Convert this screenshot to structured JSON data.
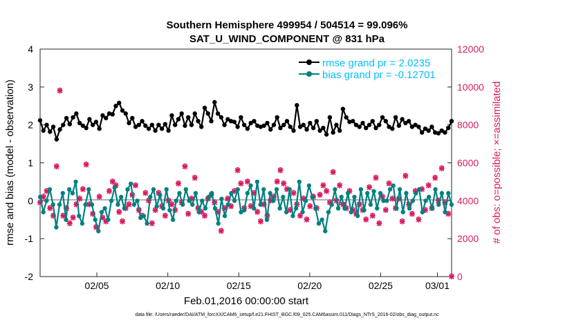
{
  "title_line1": "Southern Hemisphere 499954 / 504514 = 99.096%",
  "title_line2": "SAT_U_WIND_COMPONENT @ 831 hPa",
  "footer": "data file: /Users/raeder/DAI/ATM_forcXX/CAM6_setup/f.e21.FHIST_BGC.f09_025.CAM6assim.011/Diags_NTrS_2016-02/obs_diag_output.nc",
  "colors": {
    "rmse": "#000000",
    "bias": "#008080",
    "obs": "#d81b60",
    "legend_text": "#00bfff",
    "zero_line": "#b3b3b3"
  },
  "chart_data": {
    "type": "line",
    "xlabel": "Feb.01,2016 00:00:00 start",
    "ylabel_left": "rmse and bias (model - observation)",
    "ylabel_right": "# of obs: o=possible; ×=assimilated",
    "x_range_days": [
      0,
      29
    ],
    "ylim_left": [
      -2,
      4
    ],
    "ylim_right": [
      0,
      12000
    ],
    "left_ticks": [
      "-2",
      "-1",
      "0",
      "1",
      "2",
      "3",
      "4"
    ],
    "right_ticks": [
      "0",
      "2000",
      "4000",
      "6000",
      "8000",
      "10000",
      "12000"
    ],
    "x_ticks": [
      {
        "day": 4,
        "label": "02/05"
      },
      {
        "day": 9,
        "label": "02/10"
      },
      {
        "day": 14,
        "label": "02/15"
      },
      {
        "day": 19,
        "label": "02/20"
      },
      {
        "day": 24,
        "label": "02/25"
      },
      {
        "day": 28,
        "label": "03/01"
      }
    ],
    "legend": [
      "rmse grand pr = 2.0235",
      "bias grand pr = -0.12701"
    ],
    "series": [
      {
        "name": "rmse",
        "values": [
          2.12,
          1.85,
          2.0,
          1.82,
          1.95,
          1.62,
          1.88,
          2.0,
          2.18,
          2.02,
          2.2,
          2.3,
          2.05,
          1.98,
          1.92,
          2.15,
          2.0,
          2.08,
          1.9,
          2.25,
          2.18,
          2.3,
          2.28,
          2.5,
          2.58,
          2.38,
          2.3,
          2.05,
          2.18,
          1.95,
          2.0,
          2.1,
          1.98,
          1.9,
          2.0,
          1.85,
          2.0,
          1.9,
          2.02,
          1.85,
          2.25,
          2.0,
          2.15,
          2.3,
          1.98,
          2.2,
          2.0,
          2.3,
          2.1,
          1.95,
          2.45,
          2.3,
          2.1,
          2.6,
          2.3,
          2.2,
          2.0,
          2.15,
          2.1,
          2.08,
          1.95,
          2.2,
          2.0,
          1.9,
          2.05,
          2.1,
          1.98,
          1.95,
          1.98,
          2.05,
          1.88,
          2.0,
          2.2,
          1.92,
          2.0,
          2.1,
          1.95,
          1.85,
          2.52,
          1.95,
          2.0,
          1.88,
          2.05,
          1.92,
          2.1,
          1.85,
          1.92,
          1.75,
          2.2,
          1.8,
          2.0,
          1.85,
          2.42,
          2.2,
          2.08,
          2.1,
          2.0,
          1.95,
          2.05,
          1.92,
          2.0,
          2.1,
          1.92,
          2.0,
          2.2,
          2.1,
          1.95,
          1.9,
          2.2,
          1.98,
          2.15,
          2.05,
          2.1,
          1.95,
          2.0,
          1.95,
          1.8,
          1.9,
          1.85,
          1.95,
          1.8,
          1.78,
          1.85,
          1.8,
          1.92,
          2.1
        ]
      },
      {
        "name": "bias",
        "values": [
          0.1,
          -0.3,
          0.0,
          0.3,
          -0.1,
          -0.7,
          -0.1,
          0.2,
          -0.5,
          0.3,
          0.2,
          0.5,
          -0.4,
          -0.6,
          -0.1,
          0.3,
          -0.1,
          -0.5,
          -0.8,
          -0.3,
          -0.2,
          -0.5,
          0.0,
          0.35,
          -0.1,
          0.1,
          -0.2,
          0.3,
          0.45,
          -0.1,
          0.0,
          -0.45,
          -0.4,
          -0.6,
          0.1,
          0.3,
          -0.15,
          0.15,
          -0.2,
          0.3,
          -0.25,
          -0.5,
          0.0,
          0.2,
          -0.1,
          0.3,
          0.0,
          -0.1,
          0.2,
          -0.3,
          0.0,
          -0.2,
          0.1,
          0.2,
          -0.2,
          -0.6,
          0.05,
          -0.4,
          -0.1,
          0.2,
          0.0,
          0.3,
          -0.3,
          -0.25,
          0.2,
          0.4,
          -0.2,
          0.5,
          -0.1,
          0.3,
          -0.5,
          0.2,
          0.0,
          0.3,
          -0.2,
          0.1,
          -0.3,
          0.3,
          -0.4,
          -0.2,
          0.5,
          -0.3,
          0.0,
          0.4,
          0.1,
          -0.2,
          -0.6,
          -0.5,
          -0.8,
          -0.3,
          -0.1,
          0.3,
          -0.2,
          0.1,
          -0.2,
          0.2,
          -0.3,
          0.1,
          -0.4,
          0.3,
          -0.25,
          0.2,
          -0.1,
          0.25,
          -0.2,
          0.2,
          0.0,
          0.0,
          0.3,
          0.4,
          -0.2,
          0.3,
          -0.3,
          0.2,
          -0.2,
          0.0,
          0.2,
          0.3,
          -0.3,
          0.0,
          0.1,
          -0.2,
          0.3,
          -0.1,
          0.2,
          -0.3,
          0.2,
          -0.1
        ]
      },
      {
        "name": "obs_assimilated",
        "values": [
          3900,
          4200,
          4500,
          3600,
          3200,
          5800,
          9800,
          3200,
          3600,
          2800,
          3100,
          3800,
          4100,
          4600,
          5900,
          3800,
          3300,
          2600,
          4200,
          3100,
          2900,
          4500,
          5000,
          4800,
          3400,
          2900,
          3600,
          3800,
          4300,
          4800,
          3500,
          3200,
          4400,
          4000,
          2800,
          3500,
          4400,
          3700,
          3200,
          4000,
          3800,
          3500,
          4900,
          3900,
          5800,
          3300,
          4100,
          5200,
          3600,
          3400,
          3200,
          4100,
          4300,
          3900,
          3400,
          2400,
          3600,
          4100,
          3700,
          4500,
          5600,
          4900,
          3600,
          5000,
          3700,
          4400,
          3400,
          2900,
          3800,
          3200,
          4000,
          4200,
          5000,
          5600,
          4900,
          4600,
          3500,
          4400,
          3800,
          3200,
          4100,
          3000,
          3700,
          4200,
          3600,
          4300,
          4800,
          4500,
          3900,
          5500,
          4000,
          4800,
          3800,
          3600,
          4500,
          3500,
          3300,
          3800,
          3500,
          3000,
          4700,
          3200,
          5200,
          2800,
          4200,
          3500,
          4900,
          4100,
          3600,
          4100,
          2900,
          5300,
          3800,
          3300,
          4500,
          3000,
          4600,
          3500,
          4800,
          3600,
          5200,
          4000,
          5700,
          3900,
          3300,
          0
        ]
      },
      {
        "name": "obs_possible",
        "values": [
          3950,
          4250,
          4550,
          3650,
          3250,
          5850,
          9850,
          3250,
          3650,
          2850,
          3150,
          3850,
          4150,
          4650,
          5950,
          3850,
          3350,
          2650,
          4250,
          3150,
          2950,
          4550,
          5050,
          4850,
          3450,
          2950,
          3650,
          3850,
          4350,
          4850,
          3550,
          3250,
          4450,
          4050,
          2850,
          3550,
          4450,
          3750,
          3250,
          4050,
          3850,
          3550,
          4950,
          3950,
          5850,
          3350,
          4150,
          5250,
          3650,
          3450,
          3250,
          4150,
          4350,
          3950,
          3450,
          2450,
          3650,
          4150,
          3750,
          4550,
          5650,
          4950,
          3650,
          5050,
          3750,
          4450,
          3450,
          2950,
          3850,
          3250,
          4050,
          4250,
          5050,
          5650,
          4950,
          4650,
          3550,
          4450,
          3850,
          3250,
          4150,
          3050,
          3750,
          4250,
          3650,
          4350,
          4850,
          4550,
          3950,
          5550,
          4050,
          4850,
          3850,
          3650,
          4550,
          3550,
          3350,
          3850,
          3550,
          3050,
          4750,
          3250,
          5250,
          2850,
          4250,
          3550,
          4950,
          4150,
          3650,
          4150,
          2950,
          5350,
          3850,
          3350,
          4550,
          3050,
          4650,
          3550,
          4850,
          3650,
          5250,
          4050,
          5750,
          3950,
          3350,
          50
        ]
      }
    ]
  }
}
